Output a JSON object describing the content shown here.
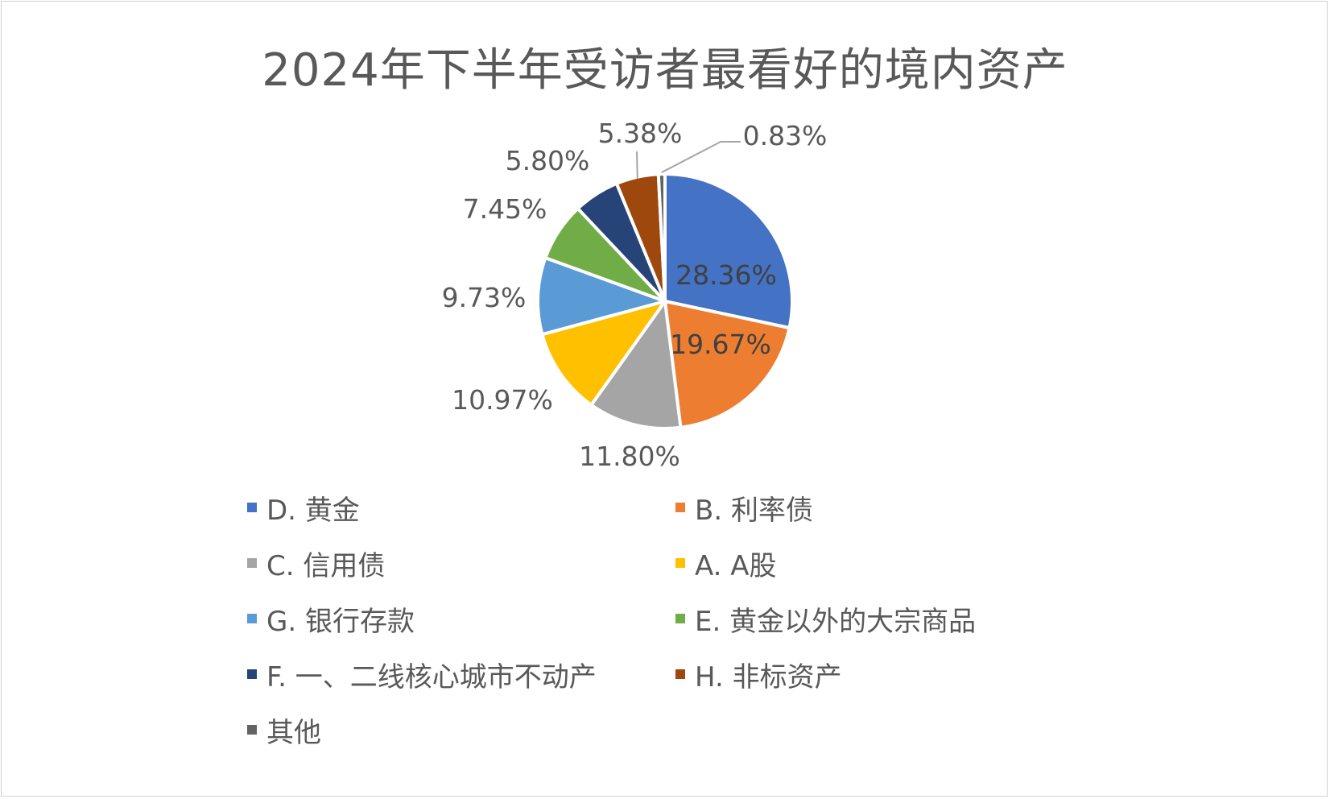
{
  "chart_data": {
    "type": "pie",
    "title": "2024年下半年受访者最看好的境内资产",
    "slices": [
      {
        "name": "D. 黄金",
        "value": 28.36,
        "label": "28.36%",
        "color": "#4472C4"
      },
      {
        "name": "B. 利率债",
        "value": 19.67,
        "label": "19.67%",
        "color": "#ED7D31"
      },
      {
        "name": "C. 信用债",
        "value": 11.8,
        "label": "11.80%",
        "color": "#A5A5A5"
      },
      {
        "name": "A. A股",
        "value": 10.97,
        "label": "10.97%",
        "color": "#FFC000"
      },
      {
        "name": "G. 银行存款",
        "value": 9.73,
        "label": "9.73%",
        "color": "#5B9BD5"
      },
      {
        "name": "E. 黄金以外的大宗商品",
        "value": 7.45,
        "label": "7.45%",
        "color": "#70AD47"
      },
      {
        "name": "F. 一、二线核心城市不动产",
        "value": 5.8,
        "label": "5.80%",
        "color": "#264478"
      },
      {
        "name": "H. 非标资产",
        "value": 5.38,
        "label": "5.38%",
        "color": "#9E480E"
      },
      {
        "name": "其他",
        "value": 0.83,
        "label": "0.83%",
        "color": "#636363"
      }
    ],
    "legend_position": "bottom"
  }
}
